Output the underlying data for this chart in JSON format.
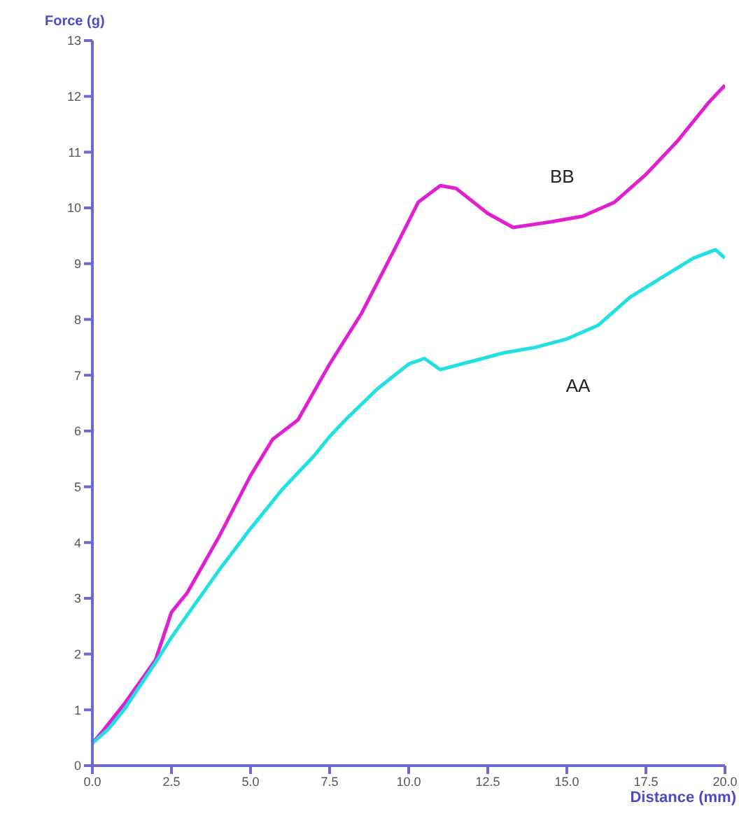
{
  "chart_data": {
    "type": "line",
    "xlabel": "Distance (mm)",
    "ylabel": "Force (g)",
    "xlim": [
      0,
      20
    ],
    "ylim": [
      0,
      13
    ],
    "xticks": [
      {
        "value": 0,
        "label": "0.0"
      },
      {
        "value": 2.5,
        "label": "2.5"
      },
      {
        "value": 5,
        "label": "5.0"
      },
      {
        "value": 7.5,
        "label": "7.5"
      },
      {
        "value": 10,
        "label": "10.0"
      },
      {
        "value": 12.5,
        "label": "12.5"
      },
      {
        "value": 15,
        "label": "15.0"
      },
      {
        "value": 17.5,
        "label": "17.5"
      },
      {
        "value": 20,
        "label": "20.0"
      }
    ],
    "yticks": [
      0,
      1,
      2,
      3,
      4,
      5,
      6,
      7,
      8,
      9,
      10,
      11,
      12,
      13
    ],
    "grid": false,
    "marker": "none",
    "line_style": "solid",
    "series": [
      {
        "name": "BB",
        "color": "#e020d0",
        "x": [
          0,
          0.3,
          1,
          2,
          2.5,
          3,
          4,
          5,
          5.7,
          6.5,
          7.5,
          8.5,
          9.5,
          10.3,
          11,
          11.5,
          12.5,
          13.3,
          14.5,
          15.5,
          16.5,
          17.5,
          18.5,
          19.5,
          20
        ],
        "values": [
          0.4,
          0.6,
          1.1,
          1.9,
          2.75,
          3.1,
          4.1,
          5.2,
          5.85,
          6.2,
          7.2,
          8.1,
          9.2,
          10.1,
          10.4,
          10.35,
          9.9,
          9.65,
          9.75,
          9.85,
          10.1,
          10.6,
          11.2,
          11.9,
          12.2
        ]
      },
      {
        "name": "AA",
        "color": "#20e0e0",
        "x": [
          0,
          0.5,
          1,
          2,
          2.5,
          3,
          4,
          5,
          6,
          7,
          7.5,
          8,
          9,
          10,
          10.5,
          11,
          12,
          13,
          14,
          15,
          16,
          17,
          18,
          19,
          19.7,
          20
        ],
        "values": [
          0.4,
          0.65,
          1.0,
          1.85,
          2.3,
          2.7,
          3.5,
          4.25,
          4.95,
          5.55,
          5.9,
          6.2,
          6.75,
          7.2,
          7.3,
          7.1,
          7.25,
          7.4,
          7.5,
          7.65,
          7.9,
          8.4,
          8.75,
          9.1,
          9.25,
          9.1
        ]
      }
    ]
  }
}
